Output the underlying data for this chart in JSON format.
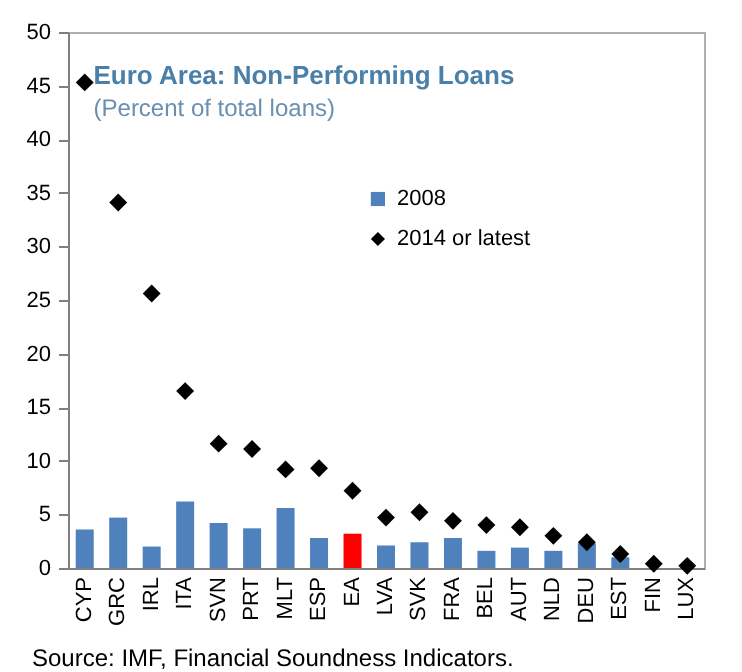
{
  "chart_data": {
    "type": "bar",
    "title": "Euro Area: Non-Performing Loans",
    "subtitle": "(Percent of total loans)",
    "categories": [
      "CYP",
      "GRC",
      "IRL",
      "ITA",
      "SVN",
      "PRT",
      "MLT",
      "ESP",
      "EA",
      "LVA",
      "SVK",
      "FRA",
      "BEL",
      "AUT",
      "NLD",
      "DEU",
      "EST",
      "FIN",
      "LUX"
    ],
    "series": [
      {
        "name": "2008",
        "type": "bar",
        "color": "#4f81bd",
        "colors": [
          "#4f81bd",
          "#4f81bd",
          "#4f81bd",
          "#4f81bd",
          "#4f81bd",
          "#4f81bd",
          "#4f81bd",
          "#4f81bd",
          "#ff0000",
          "#4f81bd",
          "#4f81bd",
          "#4f81bd",
          "#4f81bd",
          "#4f81bd",
          "#4f81bd",
          "#4f81bd",
          "#4f81bd",
          "#4f81bd",
          "#4f81bd"
        ],
        "values": [
          3.6,
          4.7,
          2.0,
          6.2,
          4.2,
          3.7,
          5.6,
          2.8,
          3.2,
          2.1,
          2.4,
          2.8,
          1.6,
          1.9,
          1.6,
          2.3,
          1.0,
          null,
          null
        ]
      },
      {
        "name": "2014 or latest",
        "type": "scatter",
        "color": "#000000",
        "marker": "diamond",
        "values": [
          45.3,
          34.1,
          25.6,
          16.5,
          11.6,
          11.1,
          9.2,
          9.3,
          7.2,
          4.7,
          5.2,
          4.4,
          4.0,
          3.8,
          3.0,
          2.4,
          1.3,
          0.4,
          0.2
        ]
      }
    ],
    "ylim": [
      0,
      50
    ],
    "yticks": [
      0,
      5,
      10,
      15,
      20,
      25,
      30,
      35,
      40,
      45,
      50
    ],
    "grid": false,
    "legend": "top right",
    "annotations": [
      "Source: IMF, Financial Soundness Indicators."
    ]
  }
}
